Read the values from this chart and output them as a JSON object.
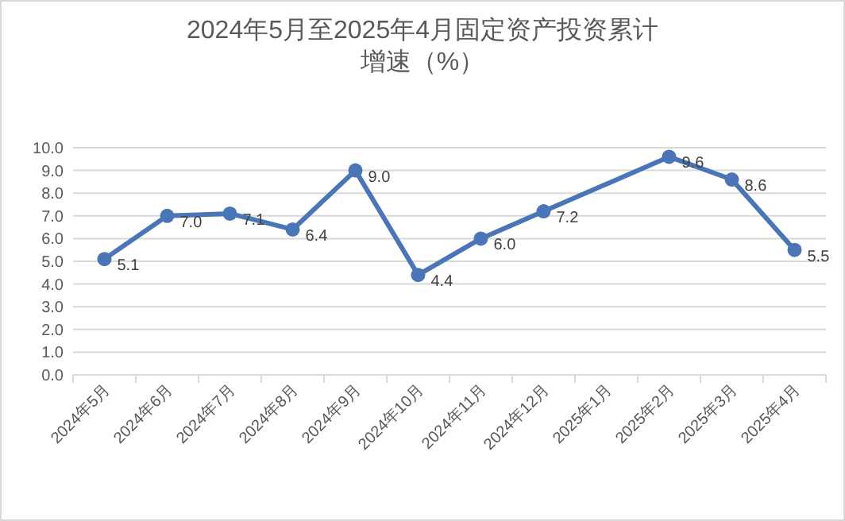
{
  "chart_data": {
    "type": "line",
    "title": "2024年5月至2025年4月固定资产投资累计增速（%）",
    "categories": [
      "2024年5月",
      "2024年6月",
      "2024年7月",
      "2024年8月",
      "2024年9月",
      "2024年10月",
      "2024年11月",
      "2024年12月",
      "2025年1月",
      "2025年2月",
      "2025年3月",
      "2025年4月"
    ],
    "series": [
      {
        "color": "#4a76b8",
        "values": [
          5.1,
          7.0,
          7.1,
          6.4,
          9.0,
          4.4,
          6.0,
          7.2,
          null,
          9.6,
          8.6,
          5.5
        ],
        "value_labels": [
          "5.1",
          "7.0",
          "7.1",
          "6.4",
          "9.0",
          "4.4",
          "6.0",
          "7.2",
          null,
          "9.6",
          "8.6",
          "5.5"
        ]
      }
    ],
    "ylim": [
      0,
      10
    ],
    "yticks": [
      {
        "value": 0,
        "label": "0.0"
      },
      {
        "value": 1,
        "label": "1.0"
      },
      {
        "value": 2,
        "label": "2.0"
      },
      {
        "value": 3,
        "label": "3.0"
      },
      {
        "value": 4,
        "label": "4.0"
      },
      {
        "value": 5,
        "label": "5.0"
      },
      {
        "value": 6,
        "label": "6.0"
      },
      {
        "value": 7,
        "label": "7.0"
      },
      {
        "value": 8,
        "label": "8.0"
      },
      {
        "value": 9,
        "label": "9.0"
      },
      {
        "value": 10,
        "label": "10.0"
      }
    ],
    "grid": "y",
    "marker": "circle",
    "line_style": "solid"
  }
}
